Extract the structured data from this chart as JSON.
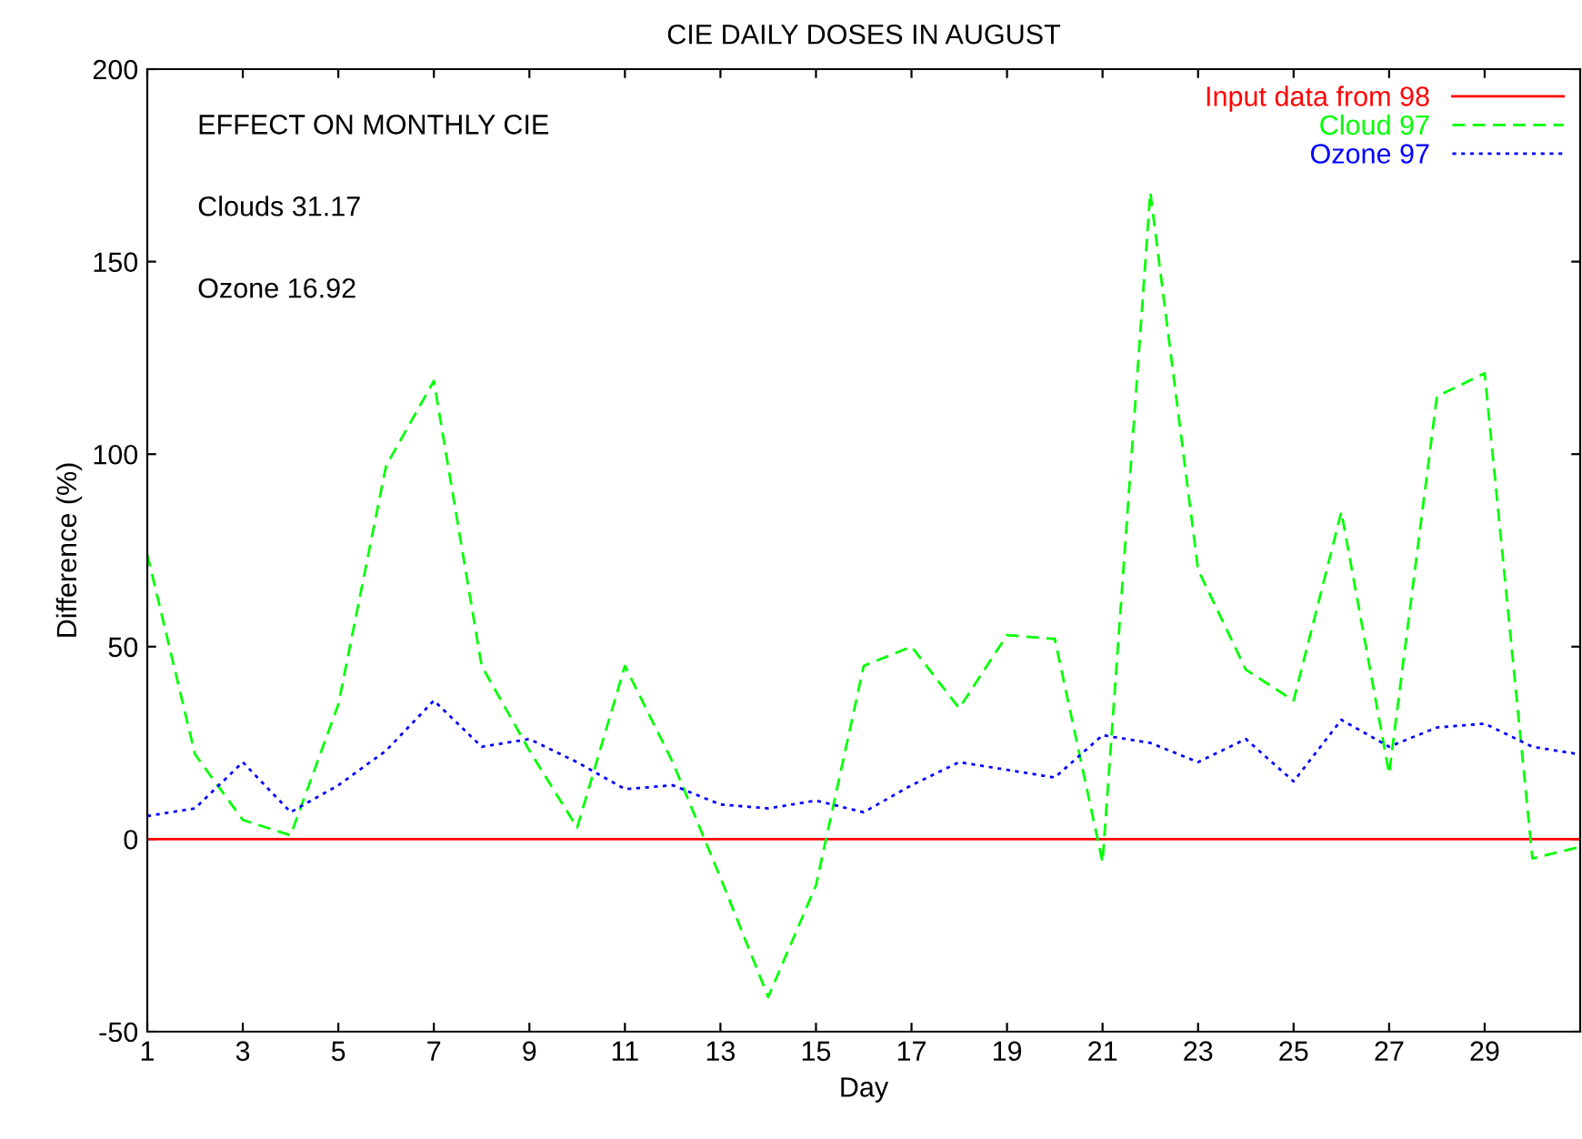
{
  "chart_data": {
    "type": "line",
    "title": "CIE DAILY DOSES IN AUGUST",
    "xlabel": "Day",
    "ylabel": "Difference (%)",
    "x": [
      1,
      2,
      3,
      4,
      5,
      6,
      7,
      8,
      9,
      10,
      11,
      12,
      13,
      14,
      15,
      16,
      17,
      18,
      19,
      20,
      21,
      22,
      23,
      24,
      25,
      26,
      27,
      28,
      29,
      30,
      31
    ],
    "series": [
      {
        "name": "Input data from 98",
        "color": "#ff0000",
        "line_style": "solid",
        "values": [
          0,
          0,
          0,
          0,
          0,
          0,
          0,
          0,
          0,
          0,
          0,
          0,
          0,
          0,
          0,
          0,
          0,
          0,
          0,
          0,
          0,
          0,
          0,
          0,
          0,
          0,
          0,
          0,
          0,
          0,
          0
        ]
      },
      {
        "name": "Cloud 97",
        "color": "#00ff00",
        "line_style": "dashed",
        "values": [
          74,
          22,
          5,
          1,
          35,
          97,
          119,
          45,
          23,
          3,
          45,
          20,
          -10,
          -41,
          -12,
          45,
          50,
          34,
          53,
          52,
          -6,
          168,
          70,
          44,
          36,
          85,
          17,
          115,
          121,
          -5,
          -2
        ]
      },
      {
        "name": "Ozone 97",
        "color": "#0000ff",
        "line_style": "dotted",
        "values": [
          6,
          8,
          20,
          7,
          14,
          23,
          36,
          24,
          26,
          20,
          13,
          14,
          9,
          8,
          10,
          7,
          14,
          20,
          18,
          16,
          27,
          25,
          20,
          26,
          15,
          31,
          24,
          29,
          30,
          24,
          22
        ]
      }
    ],
    "annotations": [
      "EFFECT ON MONTHLY CIE",
      "Clouds 31.17",
      "Ozone 16.92"
    ],
    "xlim": [
      1,
      31
    ],
    "xticks": [
      1,
      3,
      5,
      7,
      9,
      11,
      13,
      15,
      17,
      19,
      21,
      23,
      25,
      27,
      29
    ],
    "ylim": [
      -50,
      200
    ],
    "yticks": [
      -50,
      0,
      50,
      100,
      150,
      200
    ],
    "grid": false,
    "legend": "top right",
    "marker": "none"
  }
}
